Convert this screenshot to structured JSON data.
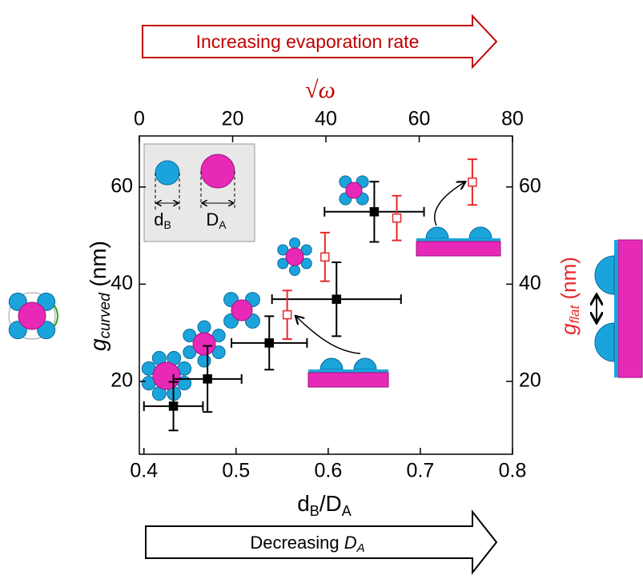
{
  "chart_data": {
    "type": "scatter",
    "top_arrow_text": "Increasing evaporation rate",
    "top_axis_label": "√ω",
    "bottom_arrow_text": [
      "Decreasing ",
      "D",
      "A"
    ],
    "x_label": [
      "d",
      "B",
      "/D",
      "A"
    ],
    "y_label": [
      "g",
      "curved",
      " (nm)"
    ],
    "y2_label": [
      "g",
      "flat",
      " (nm)"
    ],
    "inset_labels": [
      [
        "d",
        "B"
      ],
      [
        "D",
        "A"
      ]
    ],
    "xlim": [
      0.395,
      0.8
    ],
    "xticks": [
      0.4,
      0.5,
      0.6,
      0.7,
      0.8
    ],
    "x2lim": [
      0,
      80
    ],
    "x2ticks": [
      0,
      20,
      40,
      60,
      80
    ],
    "ylim": [
      5,
      70.5
    ],
    "yticks": [
      20,
      40,
      60
    ],
    "y2lim": [
      5,
      70.5
    ],
    "y2ticks": [
      20,
      40,
      60
    ],
    "series": [
      {
        "color": "#000000",
        "marker": "filled-square",
        "x": [
          0.432,
          0.469,
          0.536,
          0.609,
          0.65
        ],
        "xerr": [
          0.032,
          0.037,
          0.041,
          0.07,
          0.054
        ],
        "values": [
          14.9,
          20.5,
          27.9,
          36.9,
          54.9
        ],
        "yerr": [
          5,
          6.8,
          5.5,
          7.6,
          6.2
        ]
      },
      {
        "color": "#e8282b",
        "marker": "open-square",
        "axis": "y2",
        "x_axis": "x2",
        "x": [
          31.7,
          39.8,
          55.2,
          71.4
        ],
        "values": [
          33.7,
          45.6,
          53.6,
          61
        ],
        "yerr": [
          5,
          5,
          4.6,
          4.7
        ]
      }
    ]
  }
}
